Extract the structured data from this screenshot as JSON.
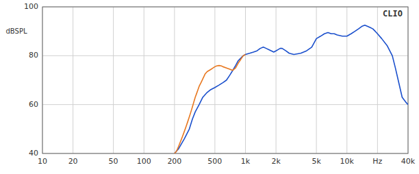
{
  "chart_data": {
    "type": "line",
    "ylabel": "dBSPL",
    "annotation": "CLIO",
    "log": "x",
    "grid": true,
    "xlim": [
      10,
      40000
    ],
    "ylim": [
      40,
      100
    ],
    "yticks": [
      40,
      60,
      80,
      100
    ],
    "xticks": [
      10,
      20,
      50,
      100,
      200,
      500,
      {
        "value": 1000,
        "label": "1k"
      },
      {
        "value": 2000,
        "label": "2k"
      },
      {
        "value": 5000,
        "label": "5k"
      },
      {
        "value": 10000,
        "label": "10k"
      },
      {
        "value": 20000,
        "label": "Hz"
      },
      {
        "value": 40000,
        "label": "40k"
      }
    ],
    "series": [
      {
        "color": "#e87820",
        "x": [
          200,
          210,
          220,
          230,
          240,
          250,
          260,
          270,
          280,
          290,
          300,
          310,
          320,
          330,
          340,
          350,
          360,
          370,
          380,
          390,
          400,
          420,
          440,
          460,
          480,
          500,
          520,
          550,
          580,
          600,
          650,
          700,
          750,
          800,
          850,
          900,
          950,
          1000
        ],
        "values": [
          40,
          41,
          43,
          45,
          47,
          49,
          51,
          53,
          55,
          57,
          59,
          61,
          63,
          64.5,
          66,
          67.5,
          68.5,
          69.5,
          70.5,
          71.5,
          72.5,
          73.5,
          74,
          74.5,
          75,
          75.5,
          75.8,
          76,
          75.8,
          75.5,
          75,
          74.5,
          74,
          75,
          77,
          78.5,
          80,
          80.5
        ]
      },
      {
        "color": "#1a4fcc",
        "x": [
          200,
          220,
          250,
          280,
          300,
          320,
          350,
          380,
          420,
          450,
          500,
          550,
          600,
          650,
          700,
          750,
          800,
          850,
          900,
          950,
          1000,
          1100,
          1200,
          1300,
          1400,
          1500,
          1600,
          1700,
          1800,
          1900,
          2000,
          2100,
          2200,
          2300,
          2500,
          2700,
          3000,
          3500,
          4000,
          4500,
          5000,
          5500,
          6000,
          6500,
          7000,
          7500,
          8000,
          9000,
          10000,
          11000,
          12000,
          13000,
          14000,
          15000,
          16000,
          17000,
          18000,
          19000,
          20000,
          22000,
          25000,
          28000,
          30000,
          32000,
          35000,
          38000,
          40000
        ],
        "values": [
          40,
          42,
          46,
          50,
          54,
          57,
          60,
          63,
          65,
          66,
          67,
          68,
          69,
          70,
          72,
          74,
          76,
          78,
          79,
          80,
          80.5,
          81,
          81.5,
          82,
          83,
          83.5,
          83,
          82.5,
          82,
          81.5,
          82,
          82.5,
          83,
          83,
          82,
          81,
          80.5,
          81,
          82,
          83.5,
          87,
          88,
          89,
          89.5,
          89,
          89,
          88.5,
          88,
          88,
          89,
          90,
          91,
          92,
          92.5,
          92,
          91.5,
          91,
          90,
          89,
          87,
          84,
          80,
          75,
          70,
          63,
          61,
          60
        ]
      }
    ]
  }
}
